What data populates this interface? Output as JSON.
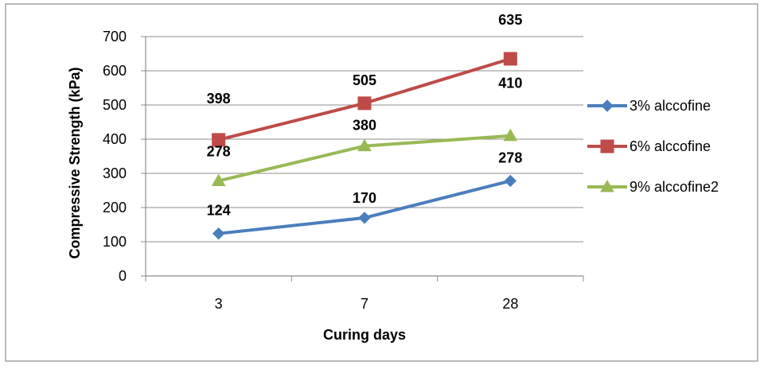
{
  "chart_data": {
    "type": "line",
    "title": "",
    "xlabel": "Curing days",
    "ylabel": "Compressive Strength (kPa)",
    "categories": [
      "3",
      "7",
      "28"
    ],
    "ylim": [
      0,
      700
    ],
    "yticks": [
      0,
      100,
      200,
      300,
      400,
      500,
      600,
      700
    ],
    "grid": "horizontal",
    "legend_position": "right",
    "series": [
      {
        "name": "3% alccofine",
        "values": [
          124,
          170,
          278
        ],
        "color": "#4a7ebb",
        "marker": "diamond"
      },
      {
        "name": "6% alccofine",
        "values": [
          398,
          505,
          635
        ],
        "color": "#be4b48",
        "marker": "square"
      },
      {
        "name": "9% alccofine2",
        "values": [
          278,
          380,
          410
        ],
        "color": "#98b954",
        "marker": "triangle"
      }
    ]
  }
}
